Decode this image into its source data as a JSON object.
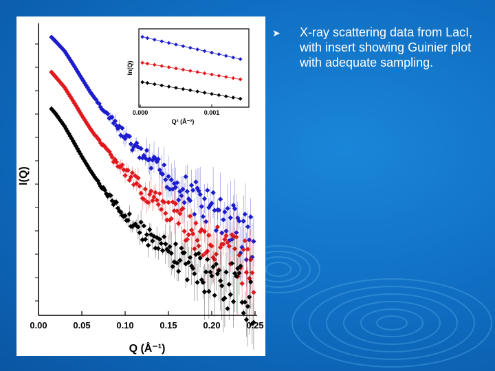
{
  "slide": {
    "bullet": "X-ray scattering data from LacI, with insert showing Guinier plot with adequate sampling.",
    "bullet_icon": "arrowhead-bullet-icon"
  },
  "colors": {
    "blue": "#1c1ccc",
    "red": "#e0191e",
    "black": "#000000"
  },
  "chart_data": [
    {
      "type": "scatter",
      "title": "",
      "xlabel": "Q (Å⁻¹)",
      "ylabel": "I(Q)",
      "xlim": [
        0.0,
        0.25
      ],
      "xticks": [
        "0.00",
        "0.05",
        "0.10",
        "0.15",
        "0.20",
        "0.25"
      ],
      "yscale": "log",
      "y_tick_labels": "none",
      "grid": false,
      "error_bars": true,
      "series": [
        {
          "color": "#1c1ccc",
          "x": [
            0.015,
            0.02,
            0.03,
            0.04,
            0.05,
            0.06,
            0.07,
            0.08,
            0.09,
            0.1,
            0.11,
            0.12,
            0.13,
            0.14,
            0.15,
            0.16,
            0.17,
            0.18,
            0.19,
            0.2,
            0.21,
            0.22,
            0.23,
            0.24,
            0.25
          ],
          "y": [
            8.5,
            7.8,
            6.5,
            5.0,
            3.8,
            2.9,
            2.3,
            1.85,
            1.5,
            1.22,
            1.0,
            0.84,
            0.72,
            0.62,
            0.55,
            0.48,
            0.42,
            0.37,
            0.33,
            0.29,
            0.26,
            0.23,
            0.2,
            0.18,
            0.16
          ]
        },
        {
          "color": "#e0191e",
          "x": [
            0.015,
            0.02,
            0.03,
            0.04,
            0.05,
            0.06,
            0.07,
            0.08,
            0.09,
            0.1,
            0.11,
            0.12,
            0.13,
            0.14,
            0.15,
            0.16,
            0.17,
            0.18,
            0.19,
            0.2,
            0.21,
            0.22,
            0.23,
            0.24,
            0.25
          ],
          "y": [
            4.3,
            3.9,
            3.2,
            2.45,
            1.85,
            1.42,
            1.12,
            0.9,
            0.74,
            0.61,
            0.51,
            0.43,
            0.37,
            0.32,
            0.28,
            0.245,
            0.215,
            0.19,
            0.17,
            0.152,
            0.137,
            0.124,
            0.112,
            0.1,
            0.09
          ]
        },
        {
          "color": "#000000",
          "x": [
            0.015,
            0.02,
            0.03,
            0.04,
            0.05,
            0.06,
            0.07,
            0.08,
            0.09,
            0.1,
            0.11,
            0.12,
            0.13,
            0.14,
            0.15,
            0.16,
            0.17,
            0.18,
            0.19,
            0.2,
            0.21,
            0.22,
            0.23,
            0.24,
            0.25
          ],
          "y": [
            2.1,
            1.9,
            1.5,
            1.12,
            0.83,
            0.63,
            0.49,
            0.39,
            0.32,
            0.265,
            0.225,
            0.192,
            0.166,
            0.146,
            0.129,
            0.115,
            0.103,
            0.093,
            0.085,
            0.078,
            0.072,
            0.066,
            0.061,
            0.057,
            0.053
          ]
        }
      ]
    },
    {
      "type": "scatter",
      "title": "",
      "xlabel": "Q² (Å⁻²)",
      "ylabel": "ln(Q)",
      "xlim": [
        0.0,
        0.0015
      ],
      "xticks": [
        "0.000",
        "0.001"
      ],
      "grid": false,
      "series": [
        {
          "color": "#1c1ccc",
          "x": [
            3e-05,
            0.0001,
            0.0002,
            0.0003,
            0.0004,
            0.0005,
            0.0006,
            0.0007,
            0.0008,
            0.0009,
            0.001,
            0.0011,
            0.0012,
            0.0013,
            0.0014
          ],
          "y": [
            2.32,
            2.29,
            2.25,
            2.21,
            2.17,
            2.13,
            2.09,
            2.05,
            2.01,
            1.97,
            1.93,
            1.89,
            1.85,
            1.81,
            1.77
          ]
        },
        {
          "color": "#e0191e",
          "x": [
            3e-05,
            0.0001,
            0.0002,
            0.0003,
            0.0004,
            0.0005,
            0.0006,
            0.0007,
            0.0008,
            0.0009,
            0.001,
            0.0011,
            0.0012,
            0.0013,
            0.0014
          ],
          "y": [
            1.68,
            1.66,
            1.63,
            1.6,
            1.57,
            1.54,
            1.51,
            1.48,
            1.45,
            1.42,
            1.39,
            1.36,
            1.33,
            1.3,
            1.27
          ]
        },
        {
          "color": "#000000",
          "x": [
            3e-05,
            0.0001,
            0.0002,
            0.0003,
            0.0004,
            0.0005,
            0.0006,
            0.0007,
            0.0008,
            0.0009,
            0.001,
            0.0011,
            0.0012,
            0.0013,
            0.0014
          ],
          "y": [
            1.2,
            1.18,
            1.15,
            1.12,
            1.09,
            1.06,
            1.03,
            1.0,
            0.97,
            0.94,
            0.91,
            0.88,
            0.85,
            0.82,
            0.79
          ]
        }
      ]
    }
  ]
}
